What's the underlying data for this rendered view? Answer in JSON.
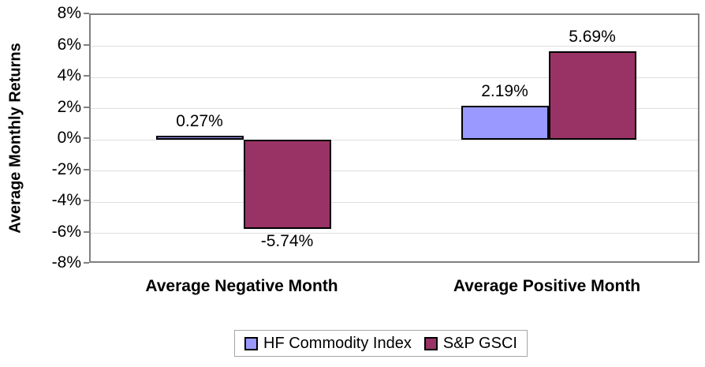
{
  "chart_data": {
    "type": "bar",
    "categories": [
      "Average Negative Month",
      "Average Positive Month"
    ],
    "series": [
      {
        "name": "HF Commodity Index",
        "color": "#9999FF",
        "values": [
          0.27,
          2.19
        ],
        "labels": [
          "0.27%",
          "2.19%"
        ]
      },
      {
        "name": "S&P GSCI",
        "color": "#993366",
        "values": [
          -5.74,
          5.69
        ],
        "labels": [
          "-5.74%",
          "5.69%"
        ]
      }
    ],
    "title": "",
    "xlabel": "",
    "ylabel": "Average Monthly Returns",
    "ylim": [
      -8,
      8
    ],
    "ytick_step": 2,
    "ytick_suffix": "%",
    "grid": true,
    "legend_position": "bottom",
    "colors": {
      "axis_border": "#808080",
      "gridline": "#dedede",
      "bar_outline": "#000000",
      "text": "#000000"
    }
  }
}
